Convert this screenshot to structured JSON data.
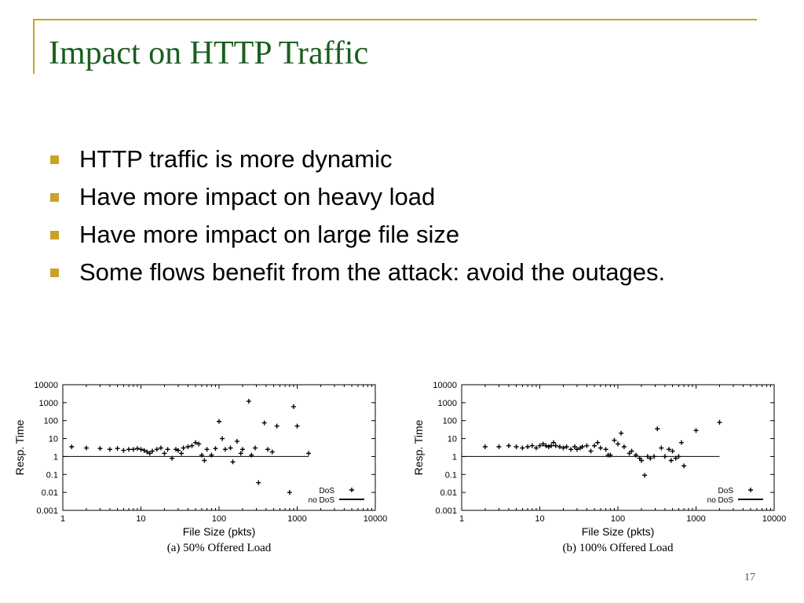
{
  "slide": {
    "title": "Impact on HTTP Traffic",
    "bullets": [
      "HTTP traffic is more dynamic",
      "Have more impact on heavy load",
      "Have more impact on large file size",
      "Some flows benefit from the attack: avoid the outages."
    ],
    "page_number": "17",
    "colors": {
      "title": "#1b5e20",
      "accent": "#c9a227"
    }
  },
  "chart_data": [
    {
      "type": "scatter",
      "title": "(a) 50% Offered Load",
      "xlabel": "File Size (pkts)",
      "ylabel": "Resp. Time",
      "xscale": "log",
      "yscale": "log",
      "xlim": [
        1,
        10000
      ],
      "ylim": [
        0.001,
        10000
      ],
      "xticks": [
        "1",
        "10",
        "100",
        "1000",
        "10000"
      ],
      "yticks": [
        "0.001",
        "0.01",
        "0.1",
        "1",
        "10",
        "100",
        "1000",
        "10000"
      ],
      "legend_position": "bottom-right",
      "series": [
        {
          "name": "DoS",
          "marker": "plus",
          "points": [
            [
              1.3,
              3.5
            ],
            [
              2,
              3
            ],
            [
              3,
              2.8
            ],
            [
              4,
              2.5
            ],
            [
              5,
              2.8
            ],
            [
              6,
              2.2
            ],
            [
              7,
              2.5
            ],
            [
              8,
              2.5
            ],
            [
              9,
              2.8
            ],
            [
              10,
              2.5
            ],
            [
              11,
              2.2
            ],
            [
              12,
              1.8
            ],
            [
              13,
              1.5
            ],
            [
              14,
              2
            ],
            [
              16,
              2.5
            ],
            [
              18,
              3
            ],
            [
              20,
              1.5
            ],
            [
              22,
              2.5
            ],
            [
              25,
              0.8
            ],
            [
              28,
              2.5
            ],
            [
              30,
              2.2
            ],
            [
              33,
              1.5
            ],
            [
              35,
              3
            ],
            [
              40,
              3.5
            ],
            [
              45,
              4
            ],
            [
              50,
              6
            ],
            [
              55,
              5
            ],
            [
              60,
              1.2
            ],
            [
              65,
              0.6
            ],
            [
              70,
              2.5
            ],
            [
              80,
              1.2
            ],
            [
              90,
              2.8
            ],
            [
              100,
              90
            ],
            [
              110,
              10
            ],
            [
              120,
              2.5
            ],
            [
              140,
              3
            ],
            [
              150,
              0.5
            ],
            [
              170,
              7
            ],
            [
              190,
              1.5
            ],
            [
              200,
              2.5
            ],
            [
              240,
              1200
            ],
            [
              260,
              1.2
            ],
            [
              290,
              3
            ],
            [
              320,
              0.035
            ],
            [
              380,
              75
            ],
            [
              420,
              2.5
            ],
            [
              480,
              1.8
            ],
            [
              550,
              50
            ],
            [
              800,
              0.01
            ],
            [
              900,
              600
            ],
            [
              1000,
              50
            ],
            [
              1400,
              1.5
            ]
          ]
        },
        {
          "name": "no DoS",
          "marker": "line",
          "points": [
            [
              1,
              1
            ],
            [
              1400,
              1
            ]
          ]
        }
      ]
    },
    {
      "type": "scatter",
      "title": "(b) 100% Offered Load",
      "xlabel": "File Size (pkts)",
      "ylabel": "Resp. Time",
      "xscale": "log",
      "yscale": "log",
      "xlim": [
        1,
        10000
      ],
      "ylim": [
        0.001,
        10000
      ],
      "xticks": [
        "1",
        "10",
        "100",
        "1000",
        "10000"
      ],
      "yticks": [
        "0.001",
        "0.01",
        "0.1",
        "1",
        "10",
        "100",
        "1000",
        "10000"
      ],
      "legend_position": "bottom-right",
      "series": [
        {
          "name": "DoS",
          "marker": "plus",
          "points": [
            [
              2,
              3.5
            ],
            [
              3,
              3.5
            ],
            [
              4,
              4
            ],
            [
              5,
              3.5
            ],
            [
              6,
              3
            ],
            [
              7,
              3.5
            ],
            [
              8,
              4
            ],
            [
              9,
              3
            ],
            [
              10,
              4
            ],
            [
              11,
              5
            ],
            [
              12,
              4
            ],
            [
              13,
              3.5
            ],
            [
              14,
              4
            ],
            [
              15,
              6
            ],
            [
              16,
              4
            ],
            [
              18,
              3.5
            ],
            [
              20,
              3
            ],
            [
              22,
              3.5
            ],
            [
              25,
              2.5
            ],
            [
              28,
              3.5
            ],
            [
              30,
              2.5
            ],
            [
              33,
              3
            ],
            [
              35,
              3.5
            ],
            [
              40,
              4
            ],
            [
              45,
              2
            ],
            [
              50,
              4
            ],
            [
              55,
              6
            ],
            [
              60,
              3
            ],
            [
              70,
              2.5
            ],
            [
              75,
              1.2
            ],
            [
              80,
              1.2
            ],
            [
              90,
              8
            ],
            [
              100,
              5
            ],
            [
              110,
              20
            ],
            [
              120,
              3.5
            ],
            [
              140,
              1.5
            ],
            [
              150,
              2
            ],
            [
              170,
              1.2
            ],
            [
              190,
              0.8
            ],
            [
              200,
              0.6
            ],
            [
              220,
              0.09
            ],
            [
              240,
              1
            ],
            [
              260,
              0.8
            ],
            [
              290,
              1
            ],
            [
              320,
              35
            ],
            [
              360,
              3
            ],
            [
              400,
              1
            ],
            [
              450,
              2.5
            ],
            [
              480,
              0.6
            ],
            [
              500,
              2
            ],
            [
              550,
              0.8
            ],
            [
              600,
              1
            ],
            [
              650,
              6
            ],
            [
              700,
              0.3
            ],
            [
              1000,
              28
            ],
            [
              2000,
              80
            ]
          ]
        },
        {
          "name": "no DoS",
          "marker": "line",
          "points": [
            [
              1,
              1
            ],
            [
              2000,
              1
            ]
          ]
        }
      ]
    }
  ]
}
